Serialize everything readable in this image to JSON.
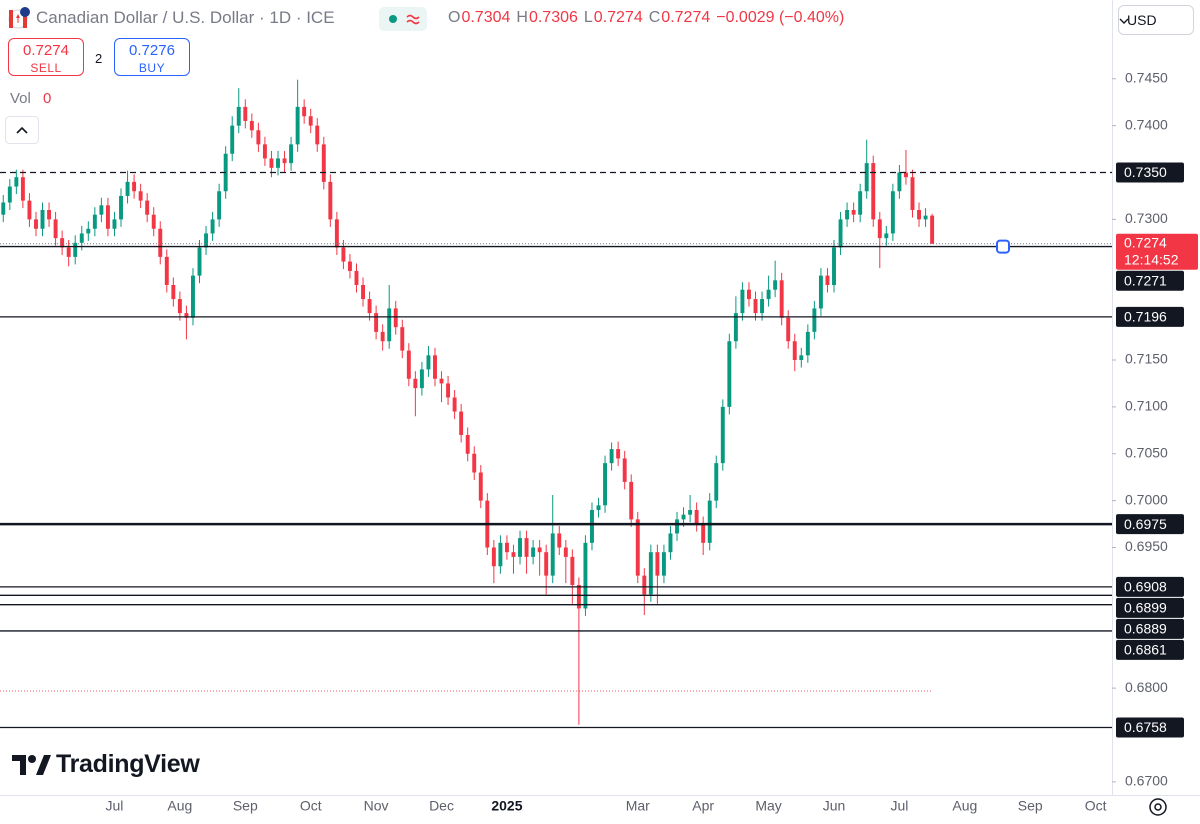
{
  "header": {
    "title": "Canadian Dollar / U.S. Dollar · 1D · ICE",
    "ohlc": [
      {
        "key": "O",
        "value": 0.7304
      },
      {
        "key": "H",
        "value": 0.7306
      },
      {
        "key": "L",
        "value": 0.7274
      },
      {
        "key": "C",
        "value": 0.7274
      }
    ],
    "change": "−0.0029 (−0.40%)"
  },
  "trade": {
    "sell_price": 0.7274,
    "sell_label": "SELL",
    "spread": 2,
    "buy_price": 0.7276,
    "buy_label": "BUY"
  },
  "volume": {
    "label": "Vol",
    "value": 0
  },
  "currency": "USD",
  "logo": "TradingView",
  "chart_data": {
    "type": "candlestick",
    "up_color": "#089981",
    "down_color": "#f23645",
    "categories": [
      null,
      null,
      null,
      null,
      null,
      null,
      null,
      null,
      null,
      null,
      null,
      null,
      null,
      null,
      null,
      null,
      null,
      "Jul",
      null,
      null,
      null,
      null,
      null,
      null,
      null,
      null,
      null,
      "Aug",
      null,
      null,
      null,
      null,
      null,
      null,
      null,
      null,
      null,
      "Sep",
      null,
      null,
      null,
      null,
      null,
      null,
      null,
      null,
      null,
      "Oct",
      null,
      null,
      null,
      null,
      null,
      null,
      null,
      null,
      null,
      "Nov",
      null,
      null,
      null,
      null,
      null,
      null,
      null,
      null,
      null,
      "Dec",
      null,
      null,
      null,
      null,
      null,
      null,
      null,
      null,
      null,
      "2025",
      null,
      null,
      null,
      null,
      null,
      null,
      null,
      null,
      null,
      null,
      null,
      null,
      null,
      null,
      null,
      null,
      null,
      null,
      null,
      "Mar",
      null,
      null,
      null,
      null,
      null,
      null,
      null,
      null,
      null,
      "Apr",
      null,
      null,
      null,
      null,
      null,
      null,
      null,
      null,
      null,
      "May",
      null,
      null,
      null,
      null,
      null,
      null,
      null,
      null,
      null,
      "Jun",
      null,
      null,
      null,
      null,
      null,
      null,
      null,
      null,
      null,
      "Jul",
      null,
      null,
      null,
      null,
      null,
      null,
      null,
      null,
      null,
      "Aug",
      null,
      null,
      null,
      null,
      null,
      null,
      null,
      null,
      null,
      "Sep",
      null,
      null,
      null,
      null,
      null,
      null,
      null,
      null,
      null,
      "Oct",
      null,
      null
    ],
    "open": [
      0.7305,
      0.7318,
      0.7335,
      0.7345,
      0.732,
      0.73,
      0.729,
      0.731,
      0.73,
      0.728,
      0.727,
      0.726,
      0.7275,
      0.7285,
      0.729,
      0.7305,
      0.7315,
      0.729,
      0.73,
      0.7325,
      0.734,
      0.733,
      0.732,
      0.7305,
      0.729,
      0.726,
      0.723,
      0.7215,
      0.72,
      0.7195,
      0.724,
      0.727,
      0.7285,
      0.73,
      0.733,
      0.737,
      0.74,
      0.742,
      0.7405,
      0.7395,
      0.738,
      0.7365,
      0.7355,
      0.7365,
      0.736,
      0.738,
      0.742,
      0.741,
      0.74,
      0.738,
      0.734,
      0.73,
      0.727,
      0.7255,
      0.7245,
      0.723,
      0.7215,
      0.72,
      0.718,
      0.717,
      0.7205,
      0.7185,
      0.716,
      0.713,
      0.712,
      0.714,
      0.7155,
      0.713,
      0.7125,
      0.711,
      0.7095,
      0.707,
      0.705,
      0.703,
      0.7,
      0.695,
      0.693,
      0.6955,
      0.6945,
      0.694,
      0.696,
      0.694,
      0.695,
      0.6945,
      0.692,
      0.6965,
      0.695,
      0.694,
      0.691,
      0.6885,
      0.6955,
      0.699,
      0.6995,
      0.704,
      0.7055,
      0.7045,
      0.702,
      0.698,
      0.692,
      0.69,
      0.6945,
      0.692,
      0.6945,
      0.6965,
      0.698,
      0.6985,
      0.699,
      0.6975,
      0.6955,
      0.7,
      0.704,
      0.71,
      0.717,
      0.72,
      0.7225,
      0.7215,
      0.72,
      0.7215,
      0.7225,
      0.7235,
      0.7195,
      0.717,
      0.715,
      0.7155,
      0.718,
      0.7205,
      0.724,
      0.723,
      0.727,
      0.73,
      0.731,
      0.7305,
      0.733,
      0.736,
      0.73,
      0.728,
      0.7285,
      0.733,
      0.735,
      0.7345,
      0.731,
      0.73,
      0.7304,
      null,
      null,
      null,
      null,
      null,
      null,
      null,
      null,
      null,
      null,
      null,
      null,
      null,
      null,
      null,
      null,
      null,
      null,
      null,
      null,
      null,
      null,
      null,
      null,
      null,
      null,
      null
    ],
    "high": [
      0.7326,
      0.7343,
      0.7353,
      0.7353,
      0.7328,
      0.7308,
      0.7318,
      0.7318,
      0.7308,
      0.7288,
      0.7278,
      0.7283,
      0.7293,
      0.7298,
      0.7313,
      0.7323,
      0.7323,
      0.7308,
      0.7333,
      0.7352,
      0.7348,
      0.7338,
      0.7328,
      0.7313,
      0.7298,
      0.7268,
      0.7238,
      0.7223,
      0.7208,
      0.7248,
      0.7278,
      0.7293,
      0.7308,
      0.7338,
      0.7378,
      0.741,
      0.744,
      0.7428,
      0.7413,
      0.7403,
      0.7388,
      0.7373,
      0.7373,
      0.7373,
      0.7388,
      0.7449,
      0.7428,
      0.7418,
      0.7408,
      0.7388,
      0.7348,
      0.7308,
      0.7278,
      0.7263,
      0.7253,
      0.7238,
      0.7223,
      0.7208,
      0.7188,
      0.723,
      0.7213,
      0.7193,
      0.7168,
      0.7138,
      0.7148,
      0.7165,
      0.7163,
      0.7138,
      0.7133,
      0.7118,
      0.7103,
      0.7078,
      0.7058,
      0.7038,
      0.7008,
      0.6958,
      0.6963,
      0.6963,
      0.6953,
      0.6968,
      0.6968,
      0.6958,
      0.6958,
      0.6953,
      0.7006,
      0.6973,
      0.6958,
      0.6948,
      0.6918,
      0.6963,
      0.6998,
      0.7003,
      0.7048,
      0.7062,
      0.7063,
      0.7053,
      0.7028,
      0.6988,
      0.6928,
      0.6953,
      0.6953,
      0.6953,
      0.6973,
      0.6988,
      0.6993,
      0.7006,
      0.6998,
      0.6983,
      0.7008,
      0.7048,
      0.7108,
      0.7178,
      0.7218,
      0.7233,
      0.7233,
      0.7223,
      0.7223,
      0.724,
      0.7256,
      0.7243,
      0.7203,
      0.7178,
      0.7163,
      0.7188,
      0.7213,
      0.7248,
      0.7248,
      0.7278,
      0.7308,
      0.7318,
      0.7318,
      0.7338,
      0.7385,
      0.7368,
      0.7308,
      0.7293,
      0.7338,
      0.7358,
      0.7374,
      0.7353,
      0.7318,
      0.7312,
      0.7306,
      null,
      null,
      null,
      null,
      null,
      null,
      null,
      null,
      null,
      null,
      null,
      null,
      null,
      null,
      null,
      null,
      null,
      null,
      null,
      null,
      null,
      null,
      null,
      null,
      null,
      null,
      null
    ],
    "low": [
      0.7297,
      0.731,
      0.7327,
      0.7312,
      0.7292,
      0.7282,
      0.7282,
      0.7292,
      0.7272,
      0.7262,
      0.725,
      0.7252,
      0.7267,
      0.7277,
      0.7282,
      0.7297,
      0.7282,
      0.7282,
      0.7292,
      0.7317,
      0.7322,
      0.7312,
      0.7297,
      0.7282,
      0.7252,
      0.7222,
      0.7207,
      0.7192,
      0.7172,
      0.7187,
      0.7232,
      0.7262,
      0.7277,
      0.7292,
      0.7322,
      0.7362,
      0.7392,
      0.7397,
      0.7387,
      0.7372,
      0.7357,
      0.7345,
      0.7347,
      0.735,
      0.7352,
      0.7372,
      0.7402,
      0.7392,
      0.7372,
      0.7332,
      0.7292,
      0.7262,
      0.7247,
      0.7237,
      0.7222,
      0.7207,
      0.7192,
      0.7172,
      0.716,
      0.7162,
      0.7177,
      0.7152,
      0.7122,
      0.709,
      0.7112,
      0.7132,
      0.7122,
      0.7105,
      0.7102,
      0.7087,
      0.7062,
      0.7042,
      0.7022,
      0.6992,
      0.6942,
      0.6912,
      0.6922,
      0.6937,
      0.6922,
      0.6932,
      0.6922,
      0.6932,
      0.692,
      0.69,
      0.6912,
      0.6942,
      0.6912,
      0.689,
      0.6761,
      0.6877,
      0.6947,
      0.6982,
      0.6987,
      0.7032,
      0.7037,
      0.7012,
      0.6972,
      0.6912,
      0.6878,
      0.6892,
      0.689,
      0.6912,
      0.6937,
      0.6957,
      0.6972,
      0.6977,
      0.6967,
      0.6942,
      0.6947,
      0.6992,
      0.7032,
      0.7092,
      0.7162,
      0.7192,
      0.7207,
      0.7192,
      0.7192,
      0.7207,
      0.7217,
      0.7187,
      0.7162,
      0.7138,
      0.7142,
      0.7147,
      0.7172,
      0.7197,
      0.7222,
      0.7222,
      0.7262,
      0.7292,
      0.7297,
      0.7297,
      0.7322,
      0.7292,
      0.7248,
      0.7272,
      0.7277,
      0.7322,
      0.7337,
      0.7302,
      0.7292,
      0.7292,
      0.7274,
      null,
      null,
      null,
      null,
      null,
      null,
      null,
      null,
      null,
      null,
      null,
      null,
      null,
      null,
      null,
      null,
      null,
      null,
      null,
      null,
      null,
      null,
      null,
      null,
      null,
      null,
      null
    ],
    "close": [
      0.7318,
      0.7335,
      0.7345,
      0.732,
      0.73,
      0.729,
      0.731,
      0.73,
      0.728,
      0.727,
      0.726,
      0.7275,
      0.7285,
      0.729,
      0.7305,
      0.7315,
      0.729,
      0.73,
      0.7325,
      0.734,
      0.733,
      0.732,
      0.7305,
      0.729,
      0.726,
      0.723,
      0.7215,
      0.72,
      0.7195,
      0.724,
      0.727,
      0.7285,
      0.73,
      0.733,
      0.737,
      0.74,
      0.742,
      0.7405,
      0.7395,
      0.738,
      0.7365,
      0.7355,
      0.7365,
      0.736,
      0.738,
      0.742,
      0.741,
      0.74,
      0.738,
      0.734,
      0.73,
      0.727,
      0.7255,
      0.7245,
      0.723,
      0.7215,
      0.72,
      0.718,
      0.717,
      0.7205,
      0.7185,
      0.716,
      0.713,
      0.712,
      0.714,
      0.7155,
      0.713,
      0.7125,
      0.711,
      0.7095,
      0.707,
      0.705,
      0.703,
      0.7,
      0.695,
      0.693,
      0.6955,
      0.6945,
      0.694,
      0.696,
      0.694,
      0.695,
      0.6945,
      0.692,
      0.6965,
      0.695,
      0.694,
      0.691,
      0.6885,
      0.6955,
      0.699,
      0.6995,
      0.704,
      0.7055,
      0.7045,
      0.702,
      0.698,
      0.692,
      0.69,
      0.6945,
      0.692,
      0.6945,
      0.6965,
      0.698,
      0.6985,
      0.699,
      0.6975,
      0.6955,
      0.7,
      0.704,
      0.71,
      0.717,
      0.72,
      0.7225,
      0.7215,
      0.72,
      0.7215,
      0.7225,
      0.7235,
      0.7195,
      0.717,
      0.715,
      0.7155,
      0.718,
      0.7205,
      0.724,
      0.723,
      0.727,
      0.73,
      0.731,
      0.7305,
      0.733,
      0.736,
      0.73,
      0.728,
      0.7285,
      0.733,
      0.735,
      0.7345,
      0.731,
      0.73,
      0.7304,
      0.7274,
      null,
      null,
      null,
      null,
      null,
      null,
      null,
      null,
      null,
      null,
      null,
      null,
      null,
      null,
      null,
      null,
      null,
      null,
      null,
      null,
      null,
      null,
      null,
      null,
      null,
      null,
      null
    ],
    "ylim": [
      0.6686,
      0.7534
    ],
    "yticks": [
      {
        "value": 0.745,
        "label": "0.7450"
      },
      {
        "value": 0.74,
        "label": "0.7400"
      },
      {
        "value": 0.73,
        "label": "0.7300"
      },
      {
        "value": 0.715,
        "label": "0.7150"
      },
      {
        "value": 0.71,
        "label": "0.7100"
      },
      {
        "value": 0.705,
        "label": "0.7050"
      },
      {
        "value": 0.7,
        "label": "0.7000"
      },
      {
        "value": 0.695,
        "label": "0.6950"
      },
      {
        "value": 0.68,
        "label": "0.6800"
      },
      {
        "value": 0.67,
        "label": "0.6700"
      }
    ],
    "grid": false,
    "last_price": {
      "value": 0.7274,
      "countdown": "12:14:52"
    },
    "alert_line": 0.6797,
    "levels": [
      {
        "value": 0.735,
        "label": "0.7350",
        "style": "dashed"
      },
      {
        "value": 0.7271,
        "style": "solid"
      },
      {
        "value": 0.7196,
        "style": "solid"
      },
      {
        "value": 0.6975,
        "style": "thick"
      },
      {
        "value": 0.6908,
        "style": "solid"
      },
      {
        "value": 0.6899,
        "style": "solid"
      },
      {
        "value": 0.6889,
        "style": "solid"
      },
      {
        "value": 0.6861,
        "style": "solid"
      },
      {
        "value": 0.6758,
        "style": "solid"
      }
    ]
  }
}
